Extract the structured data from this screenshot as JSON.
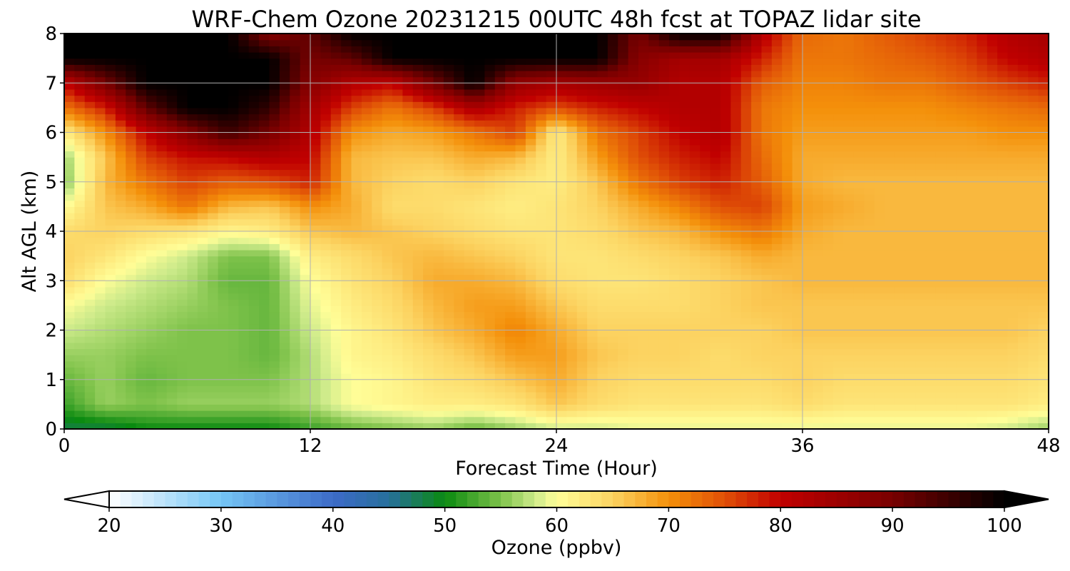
{
  "chart_data": {
    "type": "heatmap",
    "title": "WRF-Chem Ozone  20231215 00UTC 48h fcst at TOPAZ lidar site",
    "xlabel": "Forecast Time (Hour)",
    "ylabel": "Alt AGL (km)",
    "xlim": [
      0,
      48
    ],
    "ylim": [
      0,
      8
    ],
    "x_ticks": [
      "0",
      "12",
      "24",
      "36",
      "48"
    ],
    "y_ticks": [
      "0",
      "1",
      "2",
      "3",
      "4",
      "5",
      "6",
      "7",
      "8"
    ],
    "grid": true,
    "x": [
      0,
      2,
      4,
      6,
      8,
      10,
      12,
      14,
      16,
      18,
      20,
      22,
      24,
      26,
      28,
      30,
      32,
      34,
      36,
      38,
      40,
      42,
      44,
      46,
      48
    ],
    "y": [
      0,
      0.5,
      1,
      1.5,
      2,
      2.5,
      3,
      3.5,
      4,
      4.5,
      5,
      5.5,
      6,
      6.5,
      7,
      7.5,
      8
    ],
    "z": [
      [
        48,
        48,
        50,
        50,
        50,
        50,
        52,
        54,
        55,
        56,
        54,
        56,
        58,
        58,
        59,
        59,
        59,
        59,
        59,
        59,
        59,
        59,
        59,
        58,
        56
      ],
      [
        52,
        56,
        55,
        56,
        56,
        56,
        57,
        60,
        61,
        62,
        62,
        63,
        66,
        64,
        63,
        63,
        63,
        63,
        64,
        63,
        63,
        63,
        63,
        63,
        62
      ],
      [
        54,
        56,
        54,
        55,
        55,
        55,
        57,
        60,
        61,
        63,
        64,
        66,
        68,
        65,
        64,
        64,
        64,
        64,
        65,
        64,
        64,
        64,
        64,
        64,
        63
      ],
      [
        56,
        56,
        55,
        55,
        55,
        54,
        57,
        61,
        62,
        64,
        66,
        69,
        69,
        66,
        65,
        65,
        64,
        65,
        65,
        65,
        65,
        65,
        65,
        65,
        64
      ],
      [
        58,
        57,
        56,
        55,
        55,
        54,
        58,
        61,
        63,
        66,
        68,
        71,
        68,
        65,
        65,
        65,
        65,
        65,
        66,
        66,
        66,
        66,
        66,
        66,
        65
      ],
      [
        60,
        58,
        57,
        56,
        55,
        54,
        59,
        62,
        64,
        67,
        69,
        69,
        66,
        64,
        64,
        64,
        65,
        66,
        66,
        66,
        66,
        66,
        66,
        66,
        66
      ],
      [
        64,
        60,
        58,
        57,
        54,
        54,
        60,
        63,
        65,
        68,
        68,
        67,
        64,
        63,
        63,
        64,
        65,
        66,
        67,
        67,
        67,
        67,
        67,
        67,
        67
      ],
      [
        65,
        63,
        60,
        58,
        55,
        55,
        62,
        64,
        66,
        67,
        66,
        65,
        63,
        63,
        64,
        65,
        66,
        68,
        67,
        67,
        67,
        67,
        67,
        67,
        67
      ],
      [
        64,
        65,
        64,
        63,
        61,
        62,
        66,
        67,
        66,
        65,
        64,
        63,
        63,
        64,
        66,
        67,
        70,
        72,
        68,
        67,
        67,
        67,
        67,
        67,
        67
      ],
      [
        60,
        66,
        68,
        72,
        67,
        66,
        70,
        68,
        64,
        64,
        63,
        62,
        63,
        65,
        68,
        71,
        75,
        76,
        69,
        68,
        67,
        67,
        67,
        67,
        67
      ],
      [
        55,
        67,
        72,
        76,
        74,
        75,
        78,
        67,
        65,
        64,
        65,
        63,
        62,
        66,
        72,
        76,
        78,
        74,
        68,
        67,
        67,
        67,
        67,
        67,
        67
      ],
      [
        56,
        66,
        76,
        79,
        80,
        82,
        80,
        67,
        66,
        66,
        68,
        67,
        62,
        69,
        75,
        78,
        80,
        73,
        68,
        68,
        68,
        68,
        68,
        68,
        68
      ],
      [
        62,
        70,
        80,
        88,
        95,
        90,
        82,
        70,
        68,
        69,
        72,
        76,
        62,
        72,
        76,
        80,
        82,
        72,
        69,
        69,
        69,
        69,
        69,
        70,
        70
      ],
      [
        72,
        78,
        92,
        100,
        100,
        96,
        84,
        76,
        72,
        76,
        83,
        78,
        75,
        78,
        80,
        82,
        82,
        72,
        70,
        70,
        70,
        70,
        71,
        72,
        73
      ],
      [
        80,
        90,
        100,
        100,
        100,
        100,
        88,
        82,
        80,
        90,
        100,
        86,
        84,
        85,
        86,
        82,
        82,
        74,
        71,
        71,
        72,
        72,
        74,
        76,
        78
      ],
      [
        100,
        100,
        100,
        100,
        100,
        100,
        90,
        92,
        100,
        100,
        100,
        100,
        100,
        100,
        88,
        84,
        84,
        78,
        72,
        72,
        73,
        74,
        76,
        80,
        82
      ],
      [
        100,
        100,
        100,
        100,
        100,
        88,
        92,
        100,
        100,
        100,
        100,
        100,
        100,
        100,
        90,
        100,
        100,
        82,
        73,
        72,
        74,
        76,
        78,
        82,
        84
      ]
    ],
    "colorbar": {
      "label": "Ozone  (ppbv)",
      "min": 20,
      "max": 100,
      "ticks": [
        "20",
        "30",
        "40",
        "50",
        "60",
        "70",
        "80",
        "90",
        "100"
      ],
      "extend": "both",
      "anchors": [
        [
          20,
          "#ffffff"
        ],
        [
          30,
          "#75c6f5"
        ],
        [
          40,
          "#3d6bc8"
        ],
        [
          45,
          "#276f9c"
        ],
        [
          50,
          "#0a8a10"
        ],
        [
          55,
          "#7ec24a"
        ],
        [
          58,
          "#ccea8a"
        ],
        [
          60,
          "#fffe98"
        ],
        [
          65,
          "#fcd361"
        ],
        [
          70,
          "#f4900a"
        ],
        [
          75,
          "#e05007"
        ],
        [
          80,
          "#c10000"
        ],
        [
          90,
          "#780000"
        ],
        [
          100,
          "#000000"
        ]
      ]
    }
  }
}
